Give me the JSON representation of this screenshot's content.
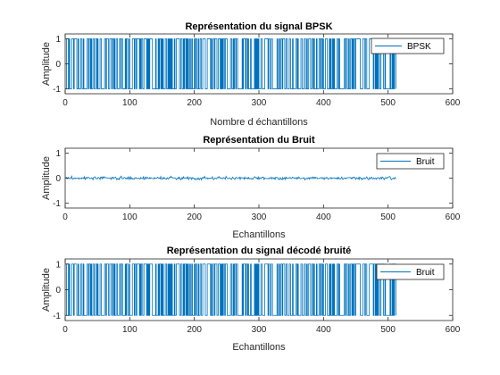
{
  "chart_data": [
    {
      "type": "line",
      "title": "Représentation du signal BPSK",
      "xlabel": "Nombre d échantillons",
      "ylabel": "Amplitude",
      "xlim": [
        0,
        600
      ],
      "ylim": [
        -1.2,
        1.2
      ],
      "xticks": [
        "0",
        "100",
        "200",
        "300",
        "400",
        "500",
        "600"
      ],
      "yticks": [
        "1",
        "0",
        "-1"
      ],
      "legend_position": "top-right",
      "series": [
        {
          "name": "BPSK",
          "color": "#0072BD",
          "kind": "bpsk",
          "n": 512,
          "seed": 7
        }
      ]
    },
    {
      "type": "line",
      "title": "Représentation du Bruit",
      "xlabel": "Echantillons",
      "ylabel": "Amplitude",
      "xlim": [
        0,
        600
      ],
      "ylim": [
        -1.2,
        1.2
      ],
      "xticks": [
        "0",
        "100",
        "200",
        "300",
        "400",
        "500",
        "600"
      ],
      "yticks": [
        "1",
        "0",
        "-1"
      ],
      "legend_position": "top-right",
      "series": [
        {
          "name": "Bruit",
          "color": "#0072BD",
          "kind": "noise",
          "n": 512,
          "amplitude": 0.05,
          "seed": 3
        }
      ]
    },
    {
      "type": "line",
      "title": "Représentation du signal décodé bruité",
      "xlabel": "Echantillons",
      "ylabel": "Amplitude",
      "xlim": [
        0,
        600
      ],
      "ylim": [
        -1.2,
        1.2
      ],
      "xticks": [
        "0",
        "100",
        "200",
        "300",
        "400",
        "500",
        "600"
      ],
      "yticks": [
        "1",
        "0",
        "-1"
      ],
      "legend_position": "top-right",
      "series": [
        {
          "name": "Bruit",
          "color": "#0072BD",
          "kind": "bpsk",
          "n": 512,
          "seed": 7
        }
      ]
    }
  ]
}
